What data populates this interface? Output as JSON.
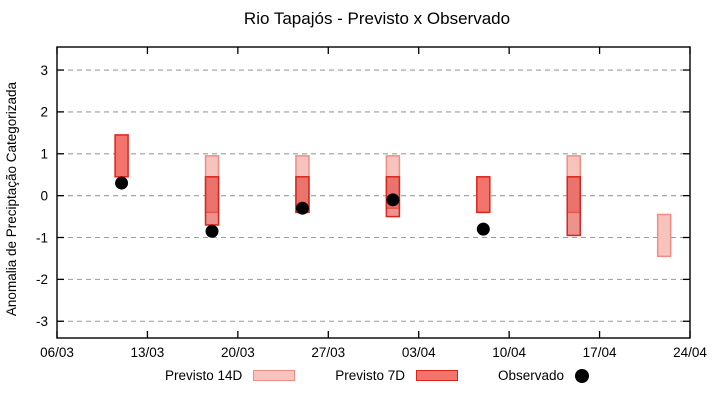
{
  "chart_data": {
    "type": "interval-bar+scatter",
    "title": "Rio Tapajós - Previsto x Observado",
    "ylabel": "Anomalia de Preciptação Categorizada",
    "legend": {
      "p14": "Previsto 14D",
      "p7": "Previsto 7D",
      "obs": "Observado"
    },
    "legend_position": "below",
    "grid": "horizontal dashed at integer y values",
    "ylim": [
      -3.4,
      3.55
    ],
    "y_ticks": [
      3,
      2,
      1,
      0,
      -1,
      -2,
      -3
    ],
    "xlim_days": [
      0,
      49
    ],
    "x_ticks": [
      {
        "day": 0,
        "label": "06/03"
      },
      {
        "day": 7,
        "label": "13/03"
      },
      {
        "day": 14,
        "label": "20/03"
      },
      {
        "day": 21,
        "label": "27/03"
      },
      {
        "day": 28,
        "label": "03/04"
      },
      {
        "day": 35,
        "label": "10/04"
      },
      {
        "day": 42,
        "label": "17/04"
      },
      {
        "day": 49,
        "label": "24/04"
      }
    ],
    "series": [
      {
        "name": "Previsto 14D",
        "type": "range-bar",
        "points": [
          {
            "date": "18/03",
            "day": 12,
            "low": -0.4,
            "high": 0.95
          },
          {
            "date": "25/03",
            "day": 19,
            "low": -0.4,
            "high": 0.95
          },
          {
            "date": "01/04",
            "day": 26,
            "low": -0.3,
            "high": 0.95
          },
          {
            "date": "15/04",
            "day": 40,
            "low": -0.4,
            "high": 0.95
          },
          {
            "date": "22/04",
            "day": 47,
            "low": -1.45,
            "high": -0.45
          }
        ]
      },
      {
        "name": "Previsto 7D",
        "type": "range-bar",
        "points": [
          {
            "date": "11/03",
            "day": 5,
            "low": 0.45,
            "high": 1.45
          },
          {
            "date": "18/03",
            "day": 12,
            "low": -0.7,
            "high": 0.45
          },
          {
            "date": "25/03",
            "day": 19,
            "low": -0.4,
            "high": 0.45
          },
          {
            "date": "01/04",
            "day": 26,
            "low": -0.5,
            "high": 0.45
          },
          {
            "date": "08/04",
            "day": 33,
            "low": -0.4,
            "high": 0.45
          },
          {
            "date": "15/04",
            "day": 40,
            "low": -0.95,
            "high": 0.45
          }
        ]
      },
      {
        "name": "Observado",
        "type": "scatter",
        "points": [
          {
            "date": "11/03",
            "day": 5,
            "value": 0.3
          },
          {
            "date": "18/03",
            "day": 12,
            "value": -0.85
          },
          {
            "date": "25/03",
            "day": 19,
            "value": -0.3
          },
          {
            "date": "01/04",
            "day": 26,
            "value": -0.1
          },
          {
            "date": "08/04",
            "day": 33,
            "value": -0.8
          }
        ]
      }
    ],
    "colors": {
      "p14_fill": "#f7c3bd",
      "p14_border": "#ef8d85",
      "p7_fill": "#f3746c",
      "p7_border": "#da251d",
      "p7_overlay": "rgba(222,38,30,0.50)",
      "observed": "#000000",
      "grid": "#9c9c9c",
      "axis": "#000000"
    }
  }
}
